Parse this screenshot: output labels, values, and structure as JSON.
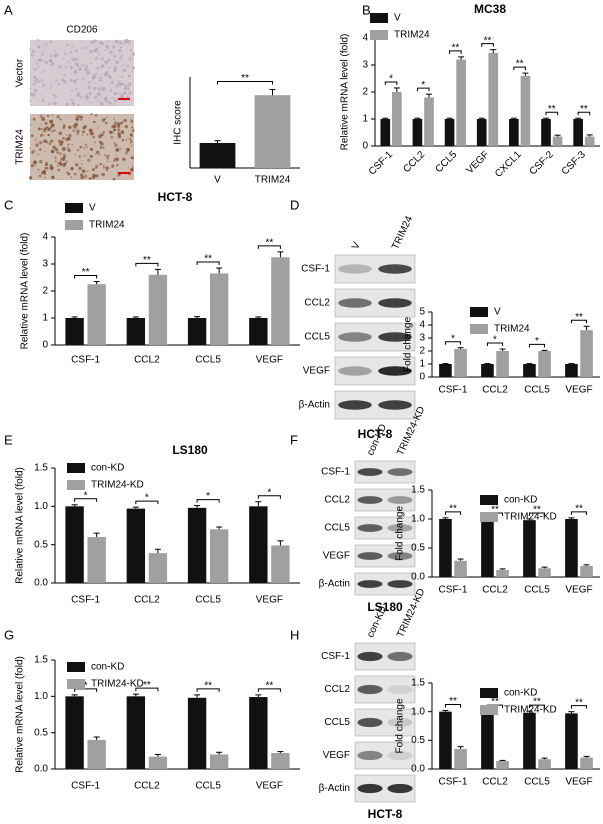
{
  "figure": {
    "panel_labels": [
      "A",
      "B",
      "C",
      "D",
      "E",
      "F",
      "G",
      "H"
    ],
    "ihc": {
      "stain": "CD206",
      "rows": [
        "Vector",
        "TRIM24"
      ]
    },
    "blots": [
      {
        "lanes": [
          "V",
          "TRIM24"
        ],
        "rows": [
          "CSF-1",
          "CCL2",
          "CCL5",
          "VEGF",
          "β-Actin"
        ],
        "caption": "HCT-8"
      },
      {
        "lanes": [
          "con-KD",
          "TRIM24-KD"
        ],
        "rows": [
          "CSF-1",
          "CCL2",
          "CCL5",
          "VEGF",
          "β-Actin"
        ],
        "caption": "LS180"
      },
      {
        "lanes": [
          "con-KD",
          "TRIM24-KD"
        ],
        "rows": [
          "CSF-1",
          "CCL2",
          "CCL5",
          "VEGF",
          "β-Actin"
        ],
        "caption": "HCT-8"
      }
    ]
  },
  "chart_data": [
    {
      "type": "bar",
      "y_label": "IHC score",
      "categories": [
        "V",
        "TRIM24"
      ],
      "values": [
        1.1,
        3.2
      ],
      "errors": [
        0.1,
        0.25
      ],
      "colors": [
        "#111111",
        "#a0a0a0"
      ],
      "ylim": [
        0,
        4
      ],
      "annotations": [
        "**"
      ]
    },
    {
      "type": "bar",
      "title": "MC38",
      "y_label": "Relative mRNA level (fold)",
      "categories": [
        "CSF-1",
        "CCL2",
        "CCL5",
        "VEGF",
        "CXCL1",
        "CSF-2",
        "CSF-3"
      ],
      "series": [
        {
          "name": "V",
          "color": "#111111",
          "values": [
            1,
            1,
            1,
            1,
            1,
            1,
            1
          ],
          "errors": [
            0.03,
            0.03,
            0.03,
            0.03,
            0.03,
            0.03,
            0.03
          ]
        },
        {
          "name": "TRIM24",
          "color": "#a0a0a0",
          "values": [
            2.0,
            1.8,
            3.2,
            3.45,
            2.6,
            0.35,
            0.35
          ],
          "errors": [
            0.15,
            0.12,
            0.1,
            0.12,
            0.1,
            0.05,
            0.06
          ]
        }
      ],
      "ylim": [
        0,
        4
      ],
      "yticks": [
        0,
        1,
        2,
        3,
        4
      ],
      "legend": "upper left",
      "annotations": [
        "*",
        "*",
        "**",
        "**",
        "**",
        "**",
        "**"
      ]
    },
    {
      "type": "bar",
      "title": "HCT-8",
      "y_label": "Relative mRNA level (fold)",
      "categories": [
        "CSF-1",
        "CCL2",
        "CCL5",
        "VEGF"
      ],
      "series": [
        {
          "name": "V",
          "color": "#111111",
          "values": [
            1,
            1,
            1,
            1
          ],
          "errors": [
            0.04,
            0.04,
            0.05,
            0.04
          ]
        },
        {
          "name": "TRIM24",
          "color": "#a0a0a0",
          "values": [
            2.25,
            2.6,
            2.65,
            3.25
          ],
          "errors": [
            0.1,
            0.2,
            0.2,
            0.2
          ]
        }
      ],
      "ylim": [
        0,
        4
      ],
      "yticks": [
        0,
        1,
        2,
        3,
        4
      ],
      "legend": "upper left",
      "annotations": [
        "**",
        "**",
        "**",
        "**"
      ]
    },
    {
      "type": "bar",
      "y_label": "Fold change",
      "categories": [
        "CSF-1",
        "CCL2",
        "CCL5",
        "VEGF"
      ],
      "series": [
        {
          "name": "V",
          "color": "#111111",
          "values": [
            1,
            1,
            1,
            1
          ],
          "errors": [
            0.03,
            0.03,
            0.03,
            0.03
          ]
        },
        {
          "name": "TRIM24",
          "color": "#a0a0a0",
          "values": [
            2.15,
            2.0,
            2.0,
            3.6
          ],
          "errors": [
            0.1,
            0.15,
            0.05,
            0.3
          ]
        }
      ],
      "ylim": [
        0,
        5
      ],
      "yticks": [
        0,
        1,
        2,
        3,
        4,
        5
      ],
      "legend": "upper left",
      "annotations": [
        "*",
        "*",
        "*",
        "**"
      ]
    },
    {
      "type": "bar",
      "title": "LS180",
      "y_label": "Relative mRNA level (fold)",
      "categories": [
        "CSF-1",
        "CCL2",
        "CCL5",
        "VEGF"
      ],
      "series": [
        {
          "name": "con-KD",
          "color": "#111111",
          "values": [
            1.0,
            0.97,
            0.98,
            1.0
          ],
          "errors": [
            0.02,
            0.02,
            0.03,
            0.06
          ]
        },
        {
          "name": "TRIM24-KD",
          "color": "#a0a0a0",
          "values": [
            0.6,
            0.39,
            0.7,
            0.49
          ],
          "errors": [
            0.05,
            0.05,
            0.03,
            0.06
          ]
        }
      ],
      "ylim": [
        0,
        1.5
      ],
      "yticks": [
        {
          "value": 0,
          "label": "0.0"
        },
        0.5,
        {
          "value": 1,
          "label": "1.0"
        },
        1.5
      ],
      "legend": "upper left",
      "annotations": [
        "*",
        "*",
        "*",
        "*"
      ]
    },
    {
      "type": "bar",
      "y_label": "Fold change",
      "categories": [
        "CSF-1",
        "CCL2",
        "CCL5",
        "VEGF"
      ],
      "series": [
        {
          "name": "con-KD",
          "color": "#111111",
          "values": [
            1.0,
            0.98,
            0.98,
            1.0
          ],
          "errors": [
            0.02,
            0.02,
            0.02,
            0.02
          ]
        },
        {
          "name": "TRIM24-KD",
          "color": "#a0a0a0",
          "values": [
            0.28,
            0.12,
            0.15,
            0.19
          ],
          "errors": [
            0.03,
            0.02,
            0.02,
            0.02
          ]
        }
      ],
      "ylim": [
        0,
        1.5
      ],
      "yticks": [
        {
          "value": 0,
          "label": "0.0"
        },
        0.5,
        {
          "value": 1,
          "label": "1.0"
        },
        1.5
      ],
      "legend": "upper right",
      "annotations": [
        "**",
        "**",
        "**",
        "**"
      ]
    },
    {
      "type": "bar",
      "y_label": "Relative mRNA level (fold)",
      "categories": [
        "CSF-1",
        "CCL2",
        "CCL5",
        "VEGF"
      ],
      "series": [
        {
          "name": "con-KD",
          "color": "#111111",
          "values": [
            1.0,
            1.0,
            0.98,
            0.99
          ],
          "errors": [
            0.02,
            0.03,
            0.04,
            0.03
          ]
        },
        {
          "name": "TRIM24-KD",
          "color": "#a0a0a0",
          "values": [
            0.4,
            0.17,
            0.2,
            0.22
          ],
          "errors": [
            0.04,
            0.03,
            0.03,
            0.02
          ]
        }
      ],
      "ylim": [
        0,
        1.5
      ],
      "yticks": [
        {
          "value": 0,
          "label": "0.0"
        },
        0.5,
        {
          "value": 1,
          "label": "1.0"
        },
        1.5
      ],
      "legend": "upper left",
      "annotations": [
        "*",
        "**",
        "**",
        "**"
      ]
    },
    {
      "type": "bar",
      "y_label": "Fold change",
      "categories": [
        "CSF-1",
        "CCL2",
        "CCL5",
        "VEGF"
      ],
      "series": [
        {
          "name": "con-KD",
          "color": "#111111",
          "values": [
            1.0,
            0.98,
            0.98,
            0.97
          ],
          "errors": [
            0.02,
            0.03,
            0.03,
            0.03
          ]
        },
        {
          "name": "TRIM24-KD",
          "color": "#a0a0a0",
          "values": [
            0.35,
            0.14,
            0.17,
            0.2
          ],
          "errors": [
            0.04,
            0.01,
            0.02,
            0.02
          ]
        }
      ],
      "ylim": [
        0,
        1.5
      ],
      "yticks": [
        {
          "value": 0,
          "label": "0.0"
        },
        0.5,
        {
          "value": 1,
          "label": "1.0"
        },
        1.5
      ],
      "legend": "upper right",
      "annotations": [
        "**",
        "**",
        "**",
        "**"
      ]
    }
  ]
}
